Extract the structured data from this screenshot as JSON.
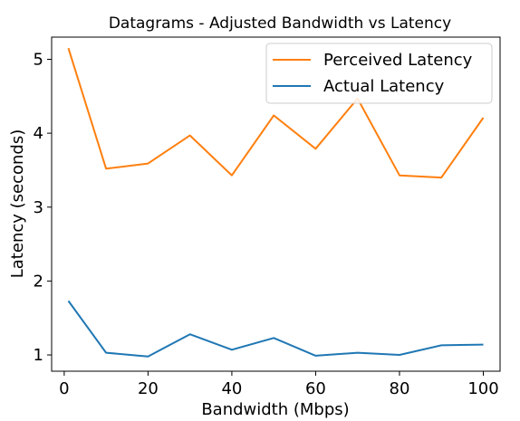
{
  "chart_data": {
    "type": "line",
    "title": "Datagrams - Adjusted Bandwidth vs Latency",
    "xlabel": "Bandwidth (Mbps)",
    "ylabel": "Latency (seconds)",
    "x": [
      1,
      10,
      20,
      30,
      40,
      50,
      60,
      70,
      80,
      90,
      100
    ],
    "xlim": [
      -3,
      104
    ],
    "ylim": [
      0.78,
      5.3
    ],
    "xticks": [
      0,
      20,
      40,
      60,
      80,
      100
    ],
    "yticks": [
      1,
      2,
      3,
      4,
      5
    ],
    "grid": false,
    "legend_position": "top-right",
    "series": [
      {
        "name": "Perceived Latency",
        "color": "#ff7f0e",
        "values": [
          5.15,
          3.52,
          3.59,
          3.97,
          3.43,
          4.24,
          3.79,
          4.47,
          3.43,
          3.4,
          4.21
        ]
      },
      {
        "name": "Actual Latency",
        "color": "#1f77b4",
        "values": [
          1.73,
          1.03,
          0.98,
          1.28,
          1.07,
          1.23,
          0.99,
          1.03,
          1.0,
          1.13,
          1.14
        ]
      }
    ]
  }
}
